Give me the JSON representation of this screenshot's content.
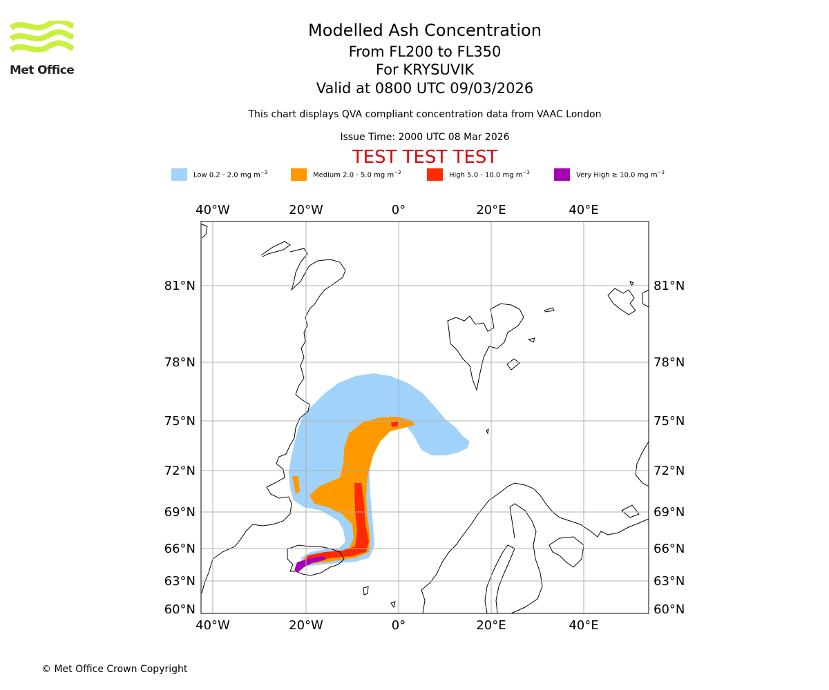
{
  "logo": {
    "text": "Met Office",
    "color": "#c8f03c"
  },
  "header": {
    "title": "Modelled Ash Concentration",
    "levels": "From FL200 to FL350",
    "volcano": "For KRYSUVIK",
    "valid": "Valid at 0800 UTC 09/03/2026",
    "source": "This chart displays QVA compliant concentration data from VAAC London",
    "issue": "Issue Time: 2000 UTC 08 Mar 2026",
    "test_banner": "TEST TEST TEST",
    "test_color": "#dd0000"
  },
  "legend": [
    {
      "label": "Low 0.2 - 2.0 mg m",
      "unit_exp": "−3",
      "color": "#a0d2fa"
    },
    {
      "label": "Medium 2.0 - 5.0 mg m",
      "unit_exp": "−3",
      "color": "#ff9900"
    },
    {
      "label": "High 5.0 - 10.0 mg m",
      "unit_exp": "−3",
      "color": "#ff2a00"
    },
    {
      "label": "Very High  ≥  10.0 mg m",
      "unit_exp": "−3",
      "color": "#a800b4"
    }
  ],
  "map": {
    "lon_labels": [
      "40°W",
      "20°W",
      "0°",
      "20°E",
      "40°E"
    ],
    "lat_labels": [
      "81°N",
      "78°N",
      "75°N",
      "72°N",
      "69°N",
      "66°N",
      "63°N",
      "60°N"
    ],
    "grid_color": "#b0b0b0"
  },
  "footer": {
    "copyright": "© Met Office Crown Copyright"
  }
}
